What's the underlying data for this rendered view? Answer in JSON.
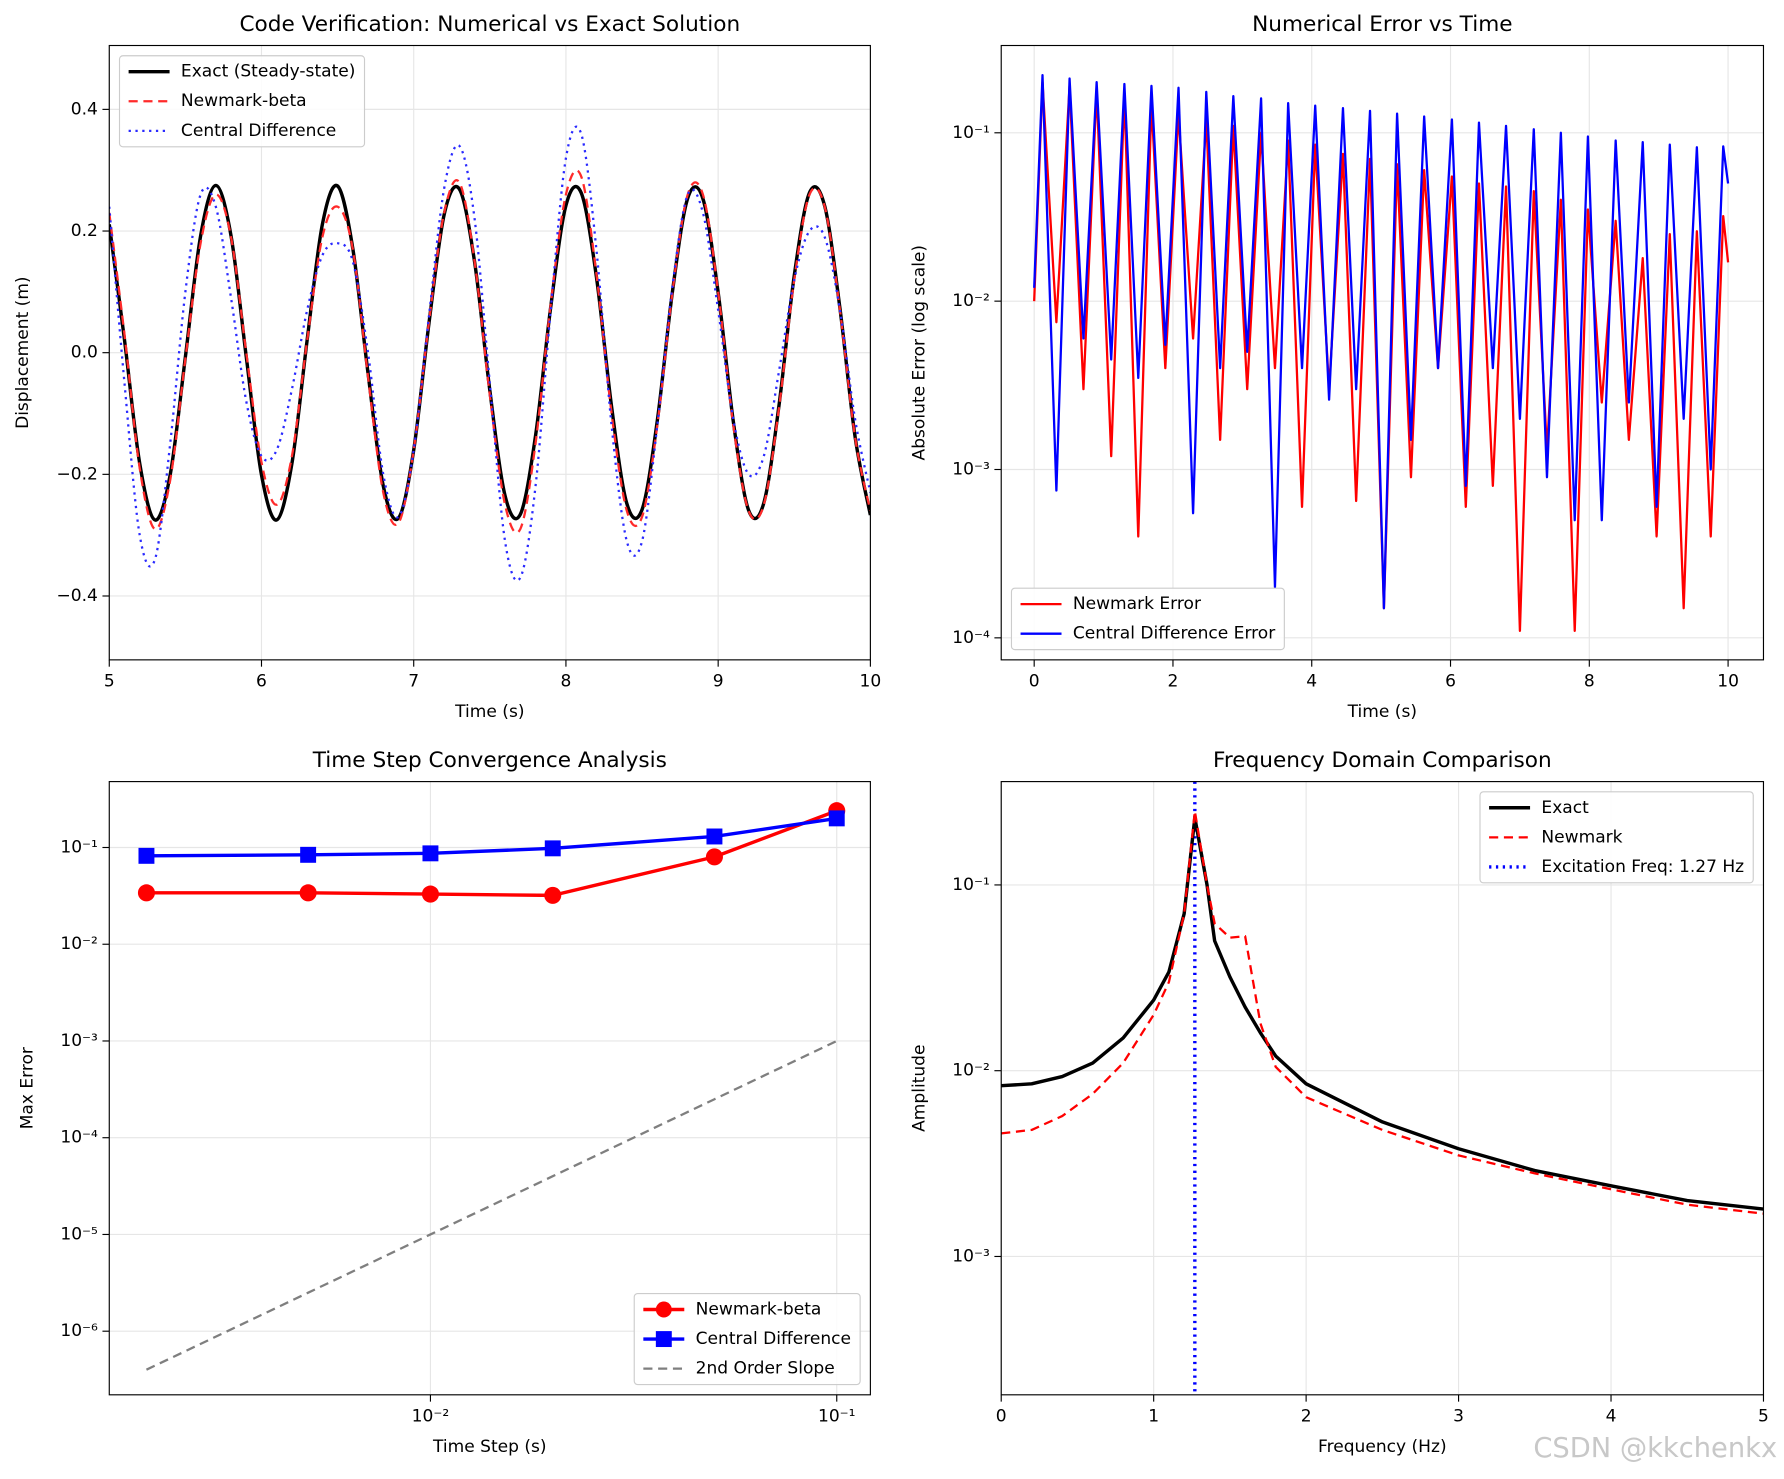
{
  "watermark": "CSDN @kkchenkx",
  "chart_data": [
    {
      "type": "line",
      "title": "Code Verification: Numerical vs Exact Solution",
      "x_label": "Time (s)",
      "y_label": "Displacement (m)",
      "x": [
        5.0,
        5.1,
        5.2,
        5.3,
        5.4,
        5.5,
        5.6,
        5.7,
        5.8,
        5.9,
        6.0,
        6.1,
        6.2,
        6.3,
        6.4,
        6.5,
        6.6,
        6.7,
        6.8,
        6.9,
        7.0,
        7.1,
        7.2,
        7.3,
        7.4,
        7.5,
        7.6,
        7.7,
        7.8,
        7.9,
        8.0,
        8.1,
        8.2,
        8.3,
        8.4,
        8.5,
        8.6,
        8.7,
        8.8,
        8.9,
        9.0,
        9.1,
        9.2,
        9.3,
        9.4,
        9.5,
        9.6,
        9.7,
        9.8,
        9.9,
        10.0
      ],
      "series": [
        {
          "name": "Exact (Steady-state)",
          "color": "#000000",
          "linestyle": "solid",
          "linewidth": 3,
          "values": [
            0.211,
            0.021,
            -0.182,
            -0.275,
            -0.201,
            -0.007,
            0.192,
            0.275,
            0.192,
            -0.007,
            -0.201,
            -0.275,
            -0.182,
            0.021,
            0.211,
            0.274,
            0.171,
            -0.034,
            -0.219,
            -0.272,
            -0.16,
            0.048,
            0.227,
            0.269,
            0.149,
            -0.062,
            -0.235,
            -0.266,
            -0.137,
            0.075,
            0.242,
            0.263,
            0.125,
            -0.089,
            -0.248,
            -0.258,
            -0.112,
            0.101,
            0.254,
            0.253,
            0.099,
            -0.114,
            -0.259,
            -0.247,
            -0.086,
            0.127,
            0.263,
            0.241,
            0.073,
            -0.139,
            -0.267
          ]
        },
        {
          "name": "Newmark-beta",
          "color": "#ff2a2a",
          "linestyle": "dashed",
          "linewidth": 2,
          "values": [
            0.23,
            0.03,
            -0.19,
            -0.29,
            -0.21,
            -0.01,
            0.18,
            0.26,
            0.19,
            0.0,
            -0.18,
            -0.25,
            -0.17,
            0.02,
            0.19,
            0.24,
            0.17,
            -0.04,
            -0.23,
            -0.28,
            -0.16,
            0.05,
            0.23,
            0.28,
            0.15,
            -0.07,
            -0.25,
            -0.29,
            -0.15,
            0.08,
            0.26,
            0.29,
            0.13,
            -0.1,
            -0.26,
            -0.27,
            -0.12,
            0.1,
            0.26,
            0.26,
            0.1,
            -0.12,
            -0.26,
            -0.25,
            -0.09,
            0.12,
            0.26,
            0.24,
            0.07,
            -0.14,
            -0.26
          ]
        },
        {
          "name": "Central Difference",
          "color": "#2a2aff",
          "linestyle": "dotted",
          "linewidth": 2,
          "values": [
            0.24,
            -0.05,
            -0.3,
            -0.34,
            -0.15,
            0.1,
            0.26,
            0.24,
            0.09,
            -0.08,
            -0.17,
            -0.16,
            -0.06,
            0.07,
            0.16,
            0.18,
            0.15,
            0.0,
            -0.2,
            -0.27,
            -0.16,
            0.06,
            0.27,
            0.34,
            0.22,
            -0.05,
            -0.31,
            -0.37,
            -0.22,
            0.07,
            0.32,
            0.36,
            0.17,
            -0.12,
            -0.31,
            -0.31,
            -0.12,
            0.11,
            0.26,
            0.23,
            0.07,
            -0.11,
            -0.2,
            -0.17,
            -0.03,
            0.12,
            0.2,
            0.19,
            0.07,
            -0.11,
            -0.23
          ]
        }
      ],
      "xlim": [
        5,
        10
      ],
      "xticks": [
        5,
        6,
        7,
        8,
        9,
        10
      ],
      "ylim": [
        -0.505,
        0.505
      ],
      "yticks": [
        {
          "value": -0.4,
          "label": "−0.4"
        },
        {
          "value": -0.2,
          "label": "−0.2"
        },
        {
          "value": 0,
          "label": "0.0"
        },
        0.2,
        0.4
      ],
      "grid": true,
      "legend": "upper left"
    },
    {
      "type": "line",
      "title": "Numerical Error vs Time",
      "x_label": "Time (s)",
      "y_label": "Absolute Error (log scale)",
      "yscale": "log",
      "x": [
        0,
        0.12,
        0.32,
        0.51,
        0.71,
        0.9,
        1.11,
        1.3,
        1.5,
        1.69,
        1.89,
        2.08,
        2.29,
        2.48,
        2.68,
        2.87,
        3.07,
        3.27,
        3.47,
        3.66,
        3.86,
        4.05,
        4.25,
        4.45,
        4.64,
        4.84,
        5.04,
        5.23,
        5.43,
        5.62,
        5.82,
        6.02,
        6.22,
        6.41,
        6.61,
        6.8,
        7.0,
        7.2,
        7.39,
        7.59,
        7.79,
        7.98,
        8.18,
        8.38,
        8.57,
        8.77,
        8.97,
        9.16,
        9.36,
        9.55,
        9.75,
        9.93,
        10.0
      ],
      "series": [
        {
          "name": "Newmark Error",
          "color": "#ff0000",
          "linestyle": "solid",
          "linewidth": 2,
          "values": [
            0.01,
            0.2,
            0.0075,
            0.19,
            0.003,
            0.18,
            0.0012,
            0.17,
            0.0004,
            0.15,
            0.004,
            0.13,
            0.006,
            0.12,
            0.0015,
            0.11,
            0.003,
            0.1,
            0.004,
            0.09,
            0.0006,
            0.085,
            0.003,
            0.075,
            0.00065,
            0.07,
            0.00015,
            0.065,
            0.0009,
            0.06,
            0.004,
            0.055,
            0.0006,
            0.05,
            0.0008,
            0.048,
            0.00011,
            0.045,
            0.0013,
            0.04,
            0.00011,
            0.035,
            0.0025,
            0.03,
            0.0015,
            0.018,
            0.0004,
            0.025,
            0.00015,
            0.026,
            0.0004,
            0.032,
            0.017
          ]
        },
        {
          "name": "Central Difference Error",
          "color": "#0000ff",
          "linestyle": "solid",
          "linewidth": 2,
          "values": [
            0.012,
            0.22,
            0.00075,
            0.21,
            0.006,
            0.2,
            0.0045,
            0.195,
            0.0035,
            0.19,
            0.0055,
            0.185,
            0.00055,
            0.175,
            0.004,
            0.165,
            0.005,
            0.16,
            0.0002,
            0.15,
            0.004,
            0.145,
            0.0026,
            0.14,
            0.003,
            0.135,
            0.00015,
            0.13,
            0.0015,
            0.125,
            0.004,
            0.12,
            0.0008,
            0.115,
            0.004,
            0.11,
            0.002,
            0.105,
            0.0009,
            0.1,
            0.0005,
            0.095,
            0.0005,
            0.09,
            0.0025,
            0.088,
            0.0006,
            0.085,
            0.002,
            0.082,
            0.001,
            0.083,
            0.05
          ]
        }
      ],
      "xlim": [
        -0.475,
        10.51
      ],
      "xticks": [
        0,
        2,
        4,
        6,
        8,
        10
      ],
      "ylim": [
        7.4e-05,
        0.33
      ],
      "yticks": [
        {
          "value": 0.0001,
          "label": "10⁻⁴"
        },
        {
          "value": 0.001,
          "label": "10⁻³"
        },
        {
          "value": 0.01,
          "label": "10⁻²"
        },
        {
          "value": 0.1,
          "label": "10⁻¹"
        }
      ],
      "grid": true,
      "legend": "lower left"
    },
    {
      "type": "line",
      "title": "Time Step Convergence Analysis",
      "x_label": "Time Step (s)",
      "y_label": "Max Error",
      "xscale": "log",
      "yscale": "log",
      "x": [
        0.002,
        0.005,
        0.01,
        0.02,
        0.05,
        0.1
      ],
      "series": [
        {
          "name": "Newmark-beta",
          "color": "#ff0000",
          "linestyle": "solid",
          "linewidth": 3,
          "marker": "circle",
          "values": [
            0.034,
            0.034,
            0.033,
            0.032,
            0.08,
            0.24
          ]
        },
        {
          "name": "Central Difference",
          "color": "#0000ff",
          "linestyle": "solid",
          "linewidth": 3,
          "marker": "square",
          "values": [
            0.082,
            0.084,
            0.087,
            0.098,
            0.13,
            0.2
          ]
        },
        {
          "name": "2nd Order Slope",
          "color": "#7f7f7f",
          "linestyle": "dashed",
          "linewidth": 2,
          "values": [
            4e-07,
            2.5e-06,
            1e-05,
            4e-05,
            0.00025,
            0.001
          ]
        }
      ],
      "xlim": [
        0.00162,
        0.121
      ],
      "xticks": [
        {
          "value": 0.01,
          "label": "10⁻²"
        },
        {
          "value": 0.1,
          "label": "10⁻¹"
        }
      ],
      "ylim": [
        2.2e-07,
        0.48
      ],
      "yticks": [
        {
          "value": 1e-06,
          "label": "10⁻⁶"
        },
        {
          "value": 1e-05,
          "label": "10⁻⁵"
        },
        {
          "value": 0.0001,
          "label": "10⁻⁴"
        },
        {
          "value": 0.001,
          "label": "10⁻³"
        },
        {
          "value": 0.01,
          "label": "10⁻²"
        },
        {
          "value": 0.1,
          "label": "10⁻¹"
        }
      ],
      "grid": true,
      "legend": "lower right"
    },
    {
      "type": "line",
      "title": "Frequency Domain Comparison",
      "x_label": "Frequency (Hz)",
      "y_label": "Amplitude",
      "yscale": "log",
      "x": [
        0,
        0.2,
        0.4,
        0.6,
        0.8,
        1.0,
        1.1,
        1.2,
        1.27,
        1.35,
        1.4,
        1.5,
        1.6,
        1.7,
        1.8,
        2.0,
        2.5,
        3.0,
        3.5,
        4.0,
        4.5,
        5.0
      ],
      "series": [
        {
          "name": "Exact",
          "color": "#000000",
          "linestyle": "solid",
          "linewidth": 3,
          "values": [
            0.0083,
            0.0085,
            0.0093,
            0.011,
            0.015,
            0.024,
            0.034,
            0.07,
            0.23,
            0.1,
            0.05,
            0.032,
            0.022,
            0.016,
            0.012,
            0.0085,
            0.0053,
            0.0038,
            0.0029,
            0.0024,
            0.002,
            0.0018
          ]
        },
        {
          "name": "Newmark",
          "color": "#ff0000",
          "linestyle": "dashed",
          "linewidth": 2,
          "values": [
            0.0046,
            0.0048,
            0.0057,
            0.0075,
            0.011,
            0.02,
            0.03,
            0.07,
            0.25,
            0.1,
            0.062,
            0.052,
            0.053,
            0.018,
            0.0105,
            0.0072,
            0.0048,
            0.0035,
            0.0028,
            0.0023,
            0.0019,
            0.0017
          ]
        }
      ],
      "reference_lines": [
        {
          "name": "Excitation Freq: 1.27 Hz",
          "x": 1.27,
          "color": "#0000ff",
          "linestyle": "dotted",
          "linewidth": 3
        }
      ],
      "xlim": [
        0,
        5
      ],
      "xticks": [
        0,
        1,
        2,
        3,
        4,
        5
      ],
      "ylim": [
        0.00018,
        0.36
      ],
      "yticks": [
        {
          "value": 0.001,
          "label": "10⁻³"
        },
        {
          "value": 0.01,
          "label": "10⁻²"
        },
        {
          "value": 0.1,
          "label": "10⁻¹"
        }
      ],
      "grid": true,
      "legend": "upper right"
    }
  ]
}
